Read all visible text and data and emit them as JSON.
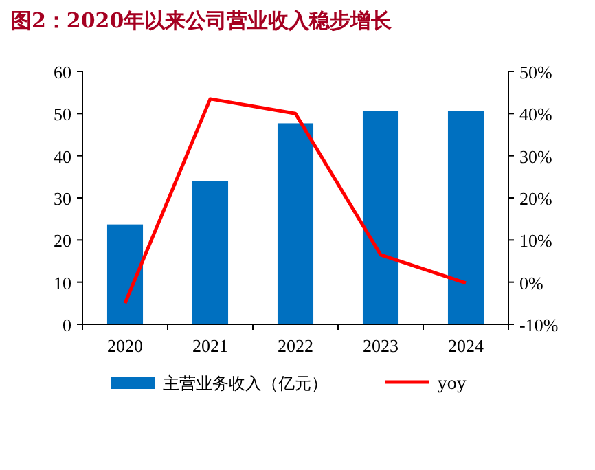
{
  "chart_data": {
    "type": "bar",
    "title": "图2：2020年以来公司营业收入稳步增长",
    "categories": [
      "2020",
      "2021",
      "2022",
      "2023",
      "2024"
    ],
    "series": [
      {
        "name": "主营业务收入（亿元）",
        "color": "#0070c0",
        "values": [
          23.7,
          34.0,
          47.7,
          50.7,
          50.6
        ]
      },
      {
        "name": "yoy",
        "type": "line",
        "axis": "y2",
        "color": "#ff0000",
        "values": [
          -5,
          43.5,
          40,
          6.5,
          -0.2
        ]
      }
    ],
    "ylim": [
      0,
      60
    ],
    "yticks": [
      0,
      10,
      20,
      30,
      40,
      50,
      60
    ],
    "y2lim": [
      -10,
      50
    ],
    "y2ticks": [
      {
        "value": -10,
        "label": "-10%"
      },
      {
        "value": 0,
        "label": "0%"
      },
      {
        "value": 10,
        "label": "10%"
      },
      {
        "value": 20,
        "label": "20%"
      },
      {
        "value": 30,
        "label": "30%"
      },
      {
        "value": 40,
        "label": "40%"
      },
      {
        "value": 50,
        "label": "50%"
      }
    ],
    "legend": "bottom",
    "grid": false
  }
}
